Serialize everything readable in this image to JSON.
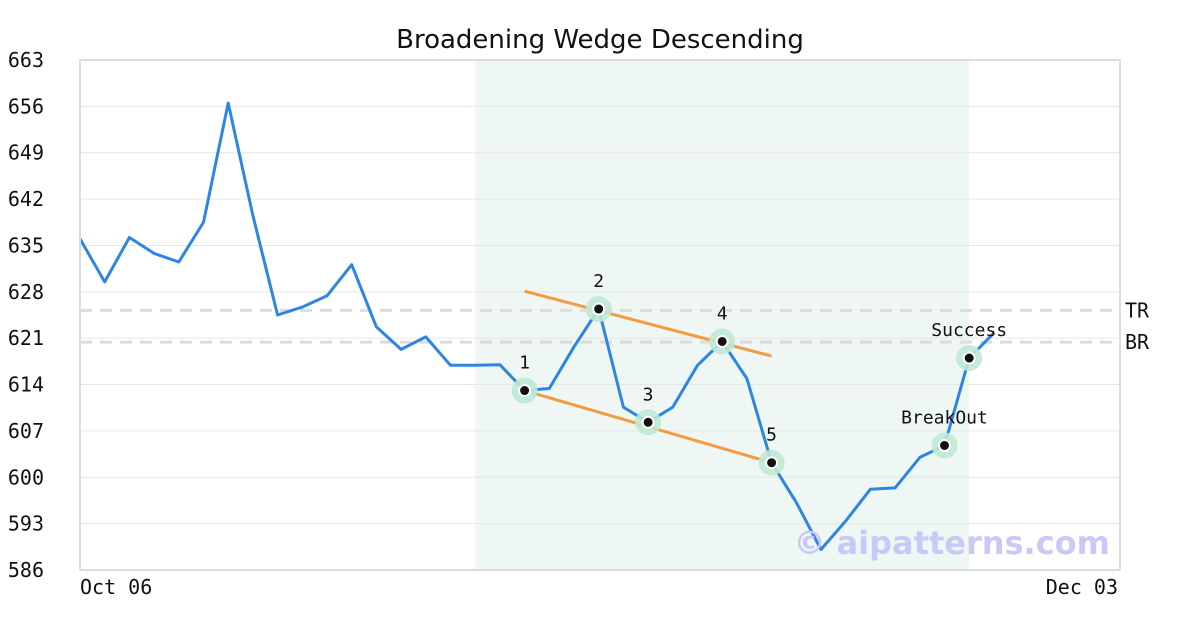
{
  "chart_data": {
    "type": "line",
    "title": "Broadening Wedge Descending",
    "xlabel": "",
    "ylabel": "",
    "x_tick_labels": [
      "Oct 06",
      "Dec 03"
    ],
    "y_ticks": [
      586,
      593,
      600,
      607,
      614,
      621,
      628,
      635,
      642,
      649,
      656,
      663
    ],
    "ylim": [
      586,
      663
    ],
    "grid": "horizontal",
    "series": [
      {
        "color": "#2f86e0",
        "values": [
          636,
          629.5,
          636.2,
          633.8,
          632.5,
          638.5,
          656.5,
          639.5,
          624.5,
          625.7,
          627.4,
          632.1,
          622.7,
          619.3,
          621.2,
          616.9,
          616.9,
          617.0,
          613.1,
          613.4,
          619.7,
          625.4,
          610.6,
          608.3,
          610.6,
          616.9,
          620.5,
          614.9,
          602.2,
          596.2,
          589.1,
          593.4,
          598.2,
          598.4,
          603.0,
          604.8,
          618.0,
          621.8
        ]
      }
    ],
    "highlight_region": {
      "start_index": 16,
      "end_index": 36,
      "color": "#eef7f3"
    },
    "pattern_points": [
      {
        "label": "1",
        "index": 18,
        "value": 613.1
      },
      {
        "label": "2",
        "index": 21,
        "value": 625.4
      },
      {
        "label": "3",
        "index": 23,
        "value": 608.3
      },
      {
        "label": "4",
        "index": 26,
        "value": 620.5
      },
      {
        "label": "5",
        "index": 28,
        "value": 602.2
      },
      {
        "label": "BreakOut",
        "index": 35,
        "value": 604.8
      },
      {
        "label": "Success",
        "index": 36,
        "value": 618.0
      }
    ],
    "trend_lines": [
      {
        "color": "#f39b43",
        "from": {
          "index": 18,
          "value": 628.1
        },
        "to": {
          "index": 28,
          "value": 618.3
        }
      },
      {
        "color": "#f39b43",
        "from": {
          "index": 18,
          "value": 613.1
        },
        "to": {
          "index": 28,
          "value": 602.2
        }
      }
    ],
    "reference_lines": [
      {
        "label": "TR",
        "value": 625.2
      },
      {
        "label": "BR",
        "value": 620.4
      }
    ],
    "watermark": "© aipatterns.com"
  }
}
